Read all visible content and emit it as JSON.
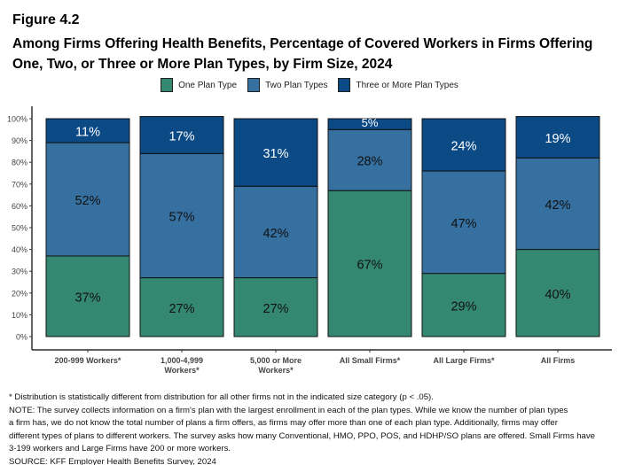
{
  "figure_label": "Figure 4.2",
  "title": "Among Firms Offering Health Benefits, Percentage of Covered Workers in Firms Offering One, Two, or Three or More Plan Types, by Firm Size, 2024",
  "chart_data": {
    "type": "bar",
    "stacked": true,
    "categories": [
      "200-999 Workers*",
      "1,000-4,999 Workers*",
      "5,000 or More Workers*",
      "All Small Firms*",
      "All Large Firms*",
      "All Firms"
    ],
    "series": [
      {
        "name": "One Plan Type",
        "values": [
          37,
          27,
          27,
          67,
          29,
          40
        ],
        "color": "#348872"
      },
      {
        "name": "Two Plan Types",
        "values": [
          52,
          57,
          42,
          28,
          47,
          42
        ],
        "color": "#3570a0"
      },
      {
        "name": "Three or More Plan Types",
        "values": [
          11,
          17,
          31,
          5,
          24,
          19
        ],
        "color": "#0c4a86"
      }
    ],
    "ylim": [
      0,
      100
    ],
    "yticks": [
      "0%",
      "10%",
      "20%",
      "30%",
      "40%",
      "50%",
      "60%",
      "70%",
      "80%",
      "90%",
      "100%"
    ],
    "grid": false,
    "legend": "top"
  },
  "notes": [
    "* Distribution is statistically different from distribution for all other firms not in the indicated size category (p < .05).",
    "NOTE: The survey collects information on a firm's plan with the largest enrollment in each of the plan types. While we know the number of plan types",
    "a firm has, we do not know the total number of plans a firm offers, as firms may offer more than one of each plan type. Additionally, firms may offer",
    "different types of plans to different workers. The survey asks how many Conventional, HMO, PPO, POS, and HDHP/SO plans are offered. Small Firms have",
    "3-199 workers and Large Firms have 200 or more workers.",
    "SOURCE: KFF Employer Health Benefits Survey, 2024"
  ]
}
